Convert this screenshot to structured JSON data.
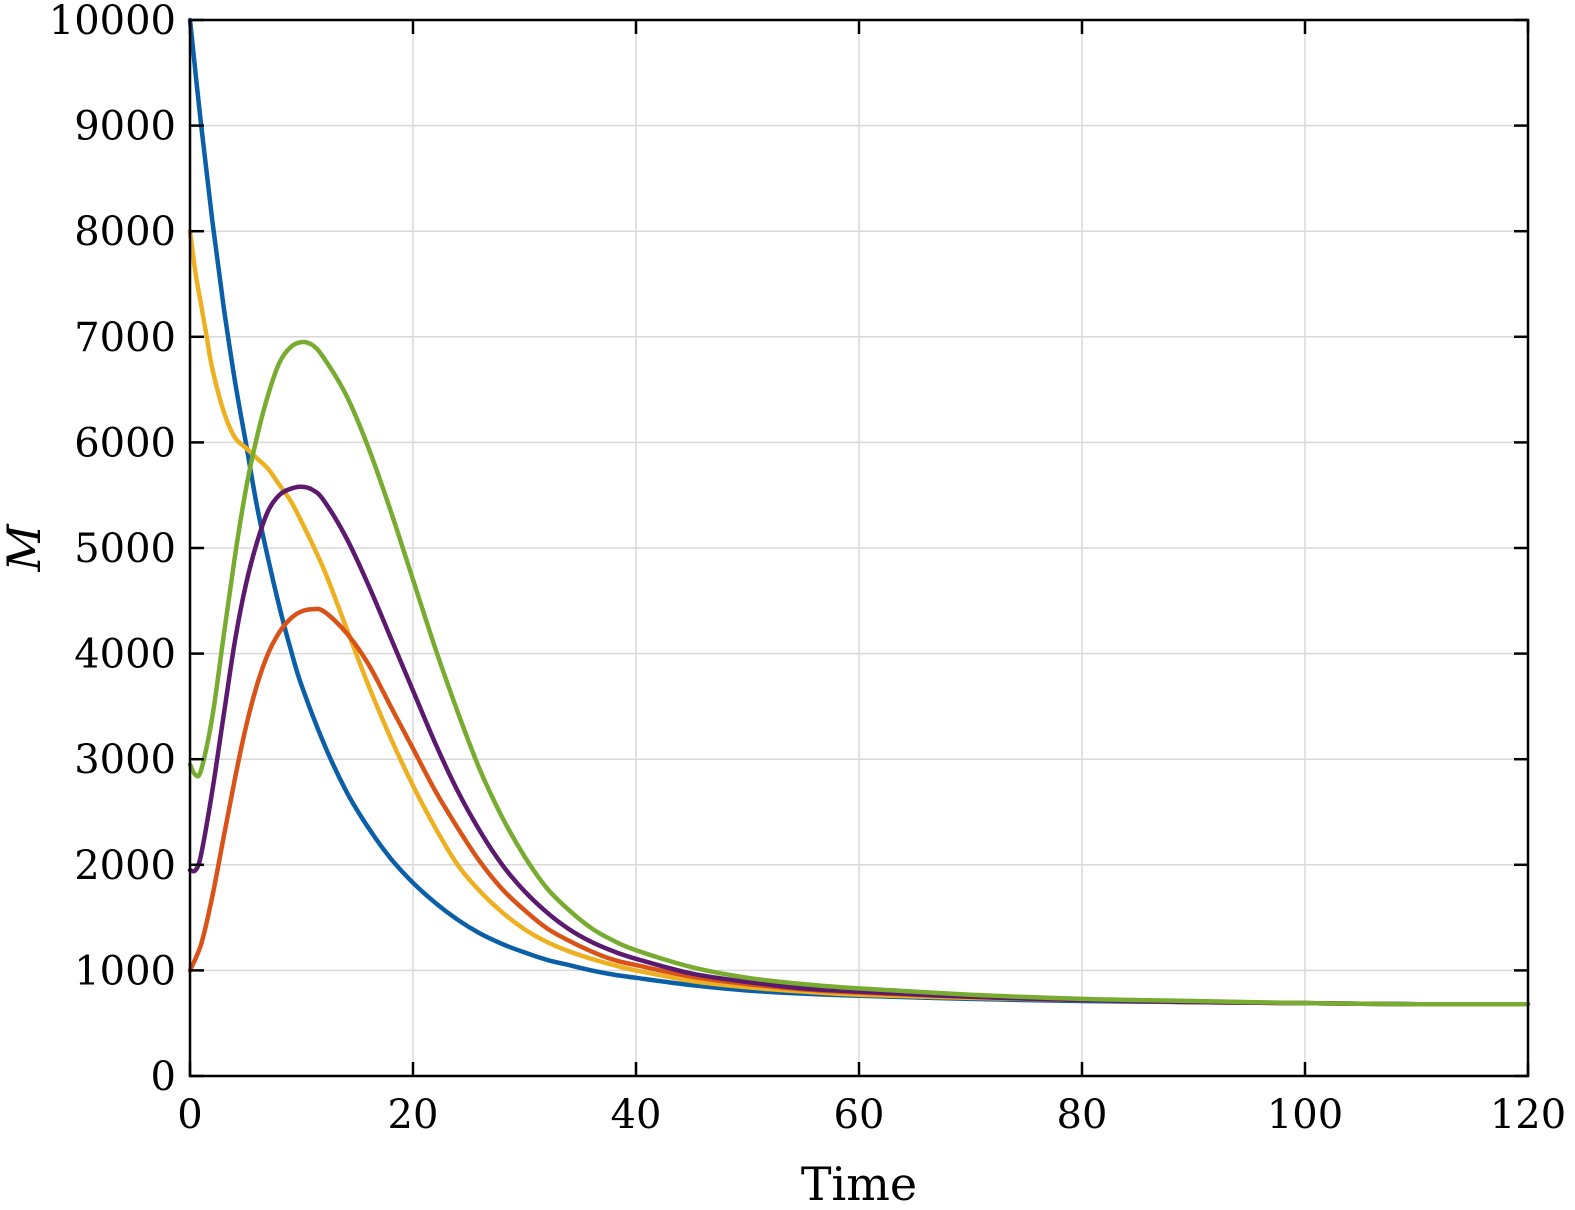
{
  "chart_data": {
    "type": "line",
    "title": "",
    "xlabel": "Time",
    "ylabel": "M",
    "xlim": [
      0,
      120
    ],
    "ylim": [
      0,
      10000
    ],
    "xticks": [
      0,
      20,
      40,
      60,
      80,
      100,
      120
    ],
    "yticks": [
      0,
      1000,
      2000,
      3000,
      4000,
      5000,
      6000,
      7000,
      8000,
      9000,
      10000
    ],
    "grid": true,
    "series": [
      {
        "color": "#0b5ea8",
        "points": [
          [
            0,
            10000
          ],
          [
            1,
            9000
          ],
          [
            2,
            8100
          ],
          [
            3,
            7300
          ],
          [
            4,
            6600
          ],
          [
            5,
            6000
          ],
          [
            6,
            5400
          ],
          [
            7,
            4900
          ],
          [
            8,
            4450
          ],
          [
            9,
            4050
          ],
          [
            10,
            3700
          ],
          [
            12,
            3150
          ],
          [
            14,
            2700
          ],
          [
            16,
            2350
          ],
          [
            18,
            2060
          ],
          [
            20,
            1830
          ],
          [
            22,
            1640
          ],
          [
            24,
            1480
          ],
          [
            26,
            1350
          ],
          [
            28,
            1250
          ],
          [
            30,
            1170
          ],
          [
            32,
            1100
          ],
          [
            34,
            1050
          ],
          [
            36,
            1000
          ],
          [
            38,
            960
          ],
          [
            40,
            930
          ],
          [
            45,
            860
          ],
          [
            50,
            810
          ],
          [
            55,
            780
          ],
          [
            60,
            760
          ],
          [
            70,
            730
          ],
          [
            80,
            710
          ],
          [
            90,
            700
          ],
          [
            100,
            690
          ],
          [
            110,
            680
          ],
          [
            120,
            680
          ]
        ]
      },
      {
        "color": "#edb021",
        "points": [
          [
            0,
            8000
          ],
          [
            0.5,
            7600
          ],
          [
            1,
            7300
          ],
          [
            1.5,
            7000
          ],
          [
            2,
            6700
          ],
          [
            3,
            6300
          ],
          [
            4,
            6050
          ],
          [
            5,
            5950
          ],
          [
            6,
            5850
          ],
          [
            7,
            5750
          ],
          [
            8,
            5600
          ],
          [
            9,
            5450
          ],
          [
            10,
            5250
          ],
          [
            12,
            4800
          ],
          [
            14,
            4250
          ],
          [
            16,
            3700
          ],
          [
            18,
            3200
          ],
          [
            20,
            2750
          ],
          [
            22,
            2350
          ],
          [
            24,
            2000
          ],
          [
            26,
            1750
          ],
          [
            28,
            1550
          ],
          [
            30,
            1390
          ],
          [
            32,
            1270
          ],
          [
            34,
            1180
          ],
          [
            36,
            1110
          ],
          [
            38,
            1050
          ],
          [
            40,
            1000
          ],
          [
            45,
            900
          ],
          [
            50,
            840
          ],
          [
            55,
            800
          ],
          [
            60,
            770
          ],
          [
            70,
            740
          ],
          [
            80,
            720
          ],
          [
            90,
            700
          ],
          [
            100,
            690
          ],
          [
            110,
            680
          ],
          [
            120,
            680
          ]
        ]
      },
      {
        "color": "#d95319",
        "points": [
          [
            0,
            1000
          ],
          [
            1,
            1250
          ],
          [
            2,
            1700
          ],
          [
            3,
            2250
          ],
          [
            4,
            2800
          ],
          [
            5,
            3300
          ],
          [
            6,
            3700
          ],
          [
            7,
            4000
          ],
          [
            8,
            4200
          ],
          [
            9,
            4330
          ],
          [
            10,
            4400
          ],
          [
            11,
            4420
          ],
          [
            12,
            4400
          ],
          [
            14,
            4200
          ],
          [
            16,
            3900
          ],
          [
            18,
            3500
          ],
          [
            20,
            3100
          ],
          [
            22,
            2700
          ],
          [
            24,
            2350
          ],
          [
            26,
            2030
          ],
          [
            28,
            1770
          ],
          [
            30,
            1570
          ],
          [
            32,
            1400
          ],
          [
            34,
            1280
          ],
          [
            36,
            1180
          ],
          [
            38,
            1100
          ],
          [
            40,
            1050
          ],
          [
            45,
            940
          ],
          [
            50,
            870
          ],
          [
            55,
            820
          ],
          [
            60,
            790
          ],
          [
            70,
            750
          ],
          [
            80,
            720
          ],
          [
            90,
            700
          ],
          [
            100,
            690
          ],
          [
            110,
            680
          ],
          [
            120,
            680
          ]
        ]
      },
      {
        "color": "#5b1a6e",
        "points": [
          [
            0,
            1950
          ],
          [
            0.5,
            1950
          ],
          [
            1,
            2100
          ],
          [
            2,
            2700
          ],
          [
            3,
            3400
          ],
          [
            4,
            4100
          ],
          [
            5,
            4650
          ],
          [
            6,
            5050
          ],
          [
            7,
            5350
          ],
          [
            8,
            5500
          ],
          [
            9,
            5560
          ],
          [
            10,
            5580
          ],
          [
            11,
            5550
          ],
          [
            12,
            5450
          ],
          [
            14,
            5100
          ],
          [
            16,
            4650
          ],
          [
            18,
            4150
          ],
          [
            20,
            3650
          ],
          [
            22,
            3150
          ],
          [
            24,
            2700
          ],
          [
            26,
            2320
          ],
          [
            28,
            2000
          ],
          [
            30,
            1750
          ],
          [
            32,
            1550
          ],
          [
            34,
            1390
          ],
          [
            36,
            1270
          ],
          [
            38,
            1180
          ],
          [
            40,
            1110
          ],
          [
            45,
            970
          ],
          [
            50,
            890
          ],
          [
            55,
            830
          ],
          [
            60,
            800
          ],
          [
            70,
            750
          ],
          [
            80,
            720
          ],
          [
            90,
            700
          ],
          [
            100,
            690
          ],
          [
            110,
            680
          ],
          [
            120,
            680
          ]
        ]
      },
      {
        "color": "#77ac30",
        "points": [
          [
            0,
            2950
          ],
          [
            0.5,
            2850
          ],
          [
            1,
            2900
          ],
          [
            2,
            3400
          ],
          [
            3,
            4150
          ],
          [
            4,
            4900
          ],
          [
            5,
            5550
          ],
          [
            6,
            6050
          ],
          [
            7,
            6450
          ],
          [
            8,
            6750
          ],
          [
            9,
            6900
          ],
          [
            10,
            6950
          ],
          [
            11,
            6920
          ],
          [
            12,
            6800
          ],
          [
            14,
            6450
          ],
          [
            16,
            5950
          ],
          [
            18,
            5350
          ],
          [
            20,
            4700
          ],
          [
            22,
            4050
          ],
          [
            24,
            3450
          ],
          [
            26,
            2900
          ],
          [
            28,
            2450
          ],
          [
            30,
            2080
          ],
          [
            32,
            1780
          ],
          [
            34,
            1570
          ],
          [
            36,
            1400
          ],
          [
            38,
            1280
          ],
          [
            40,
            1190
          ],
          [
            45,
            1030
          ],
          [
            50,
            930
          ],
          [
            55,
            870
          ],
          [
            60,
            830
          ],
          [
            70,
            770
          ],
          [
            80,
            730
          ],
          [
            90,
            710
          ],
          [
            100,
            690
          ],
          [
            110,
            680
          ],
          [
            120,
            680
          ]
        ]
      }
    ]
  }
}
